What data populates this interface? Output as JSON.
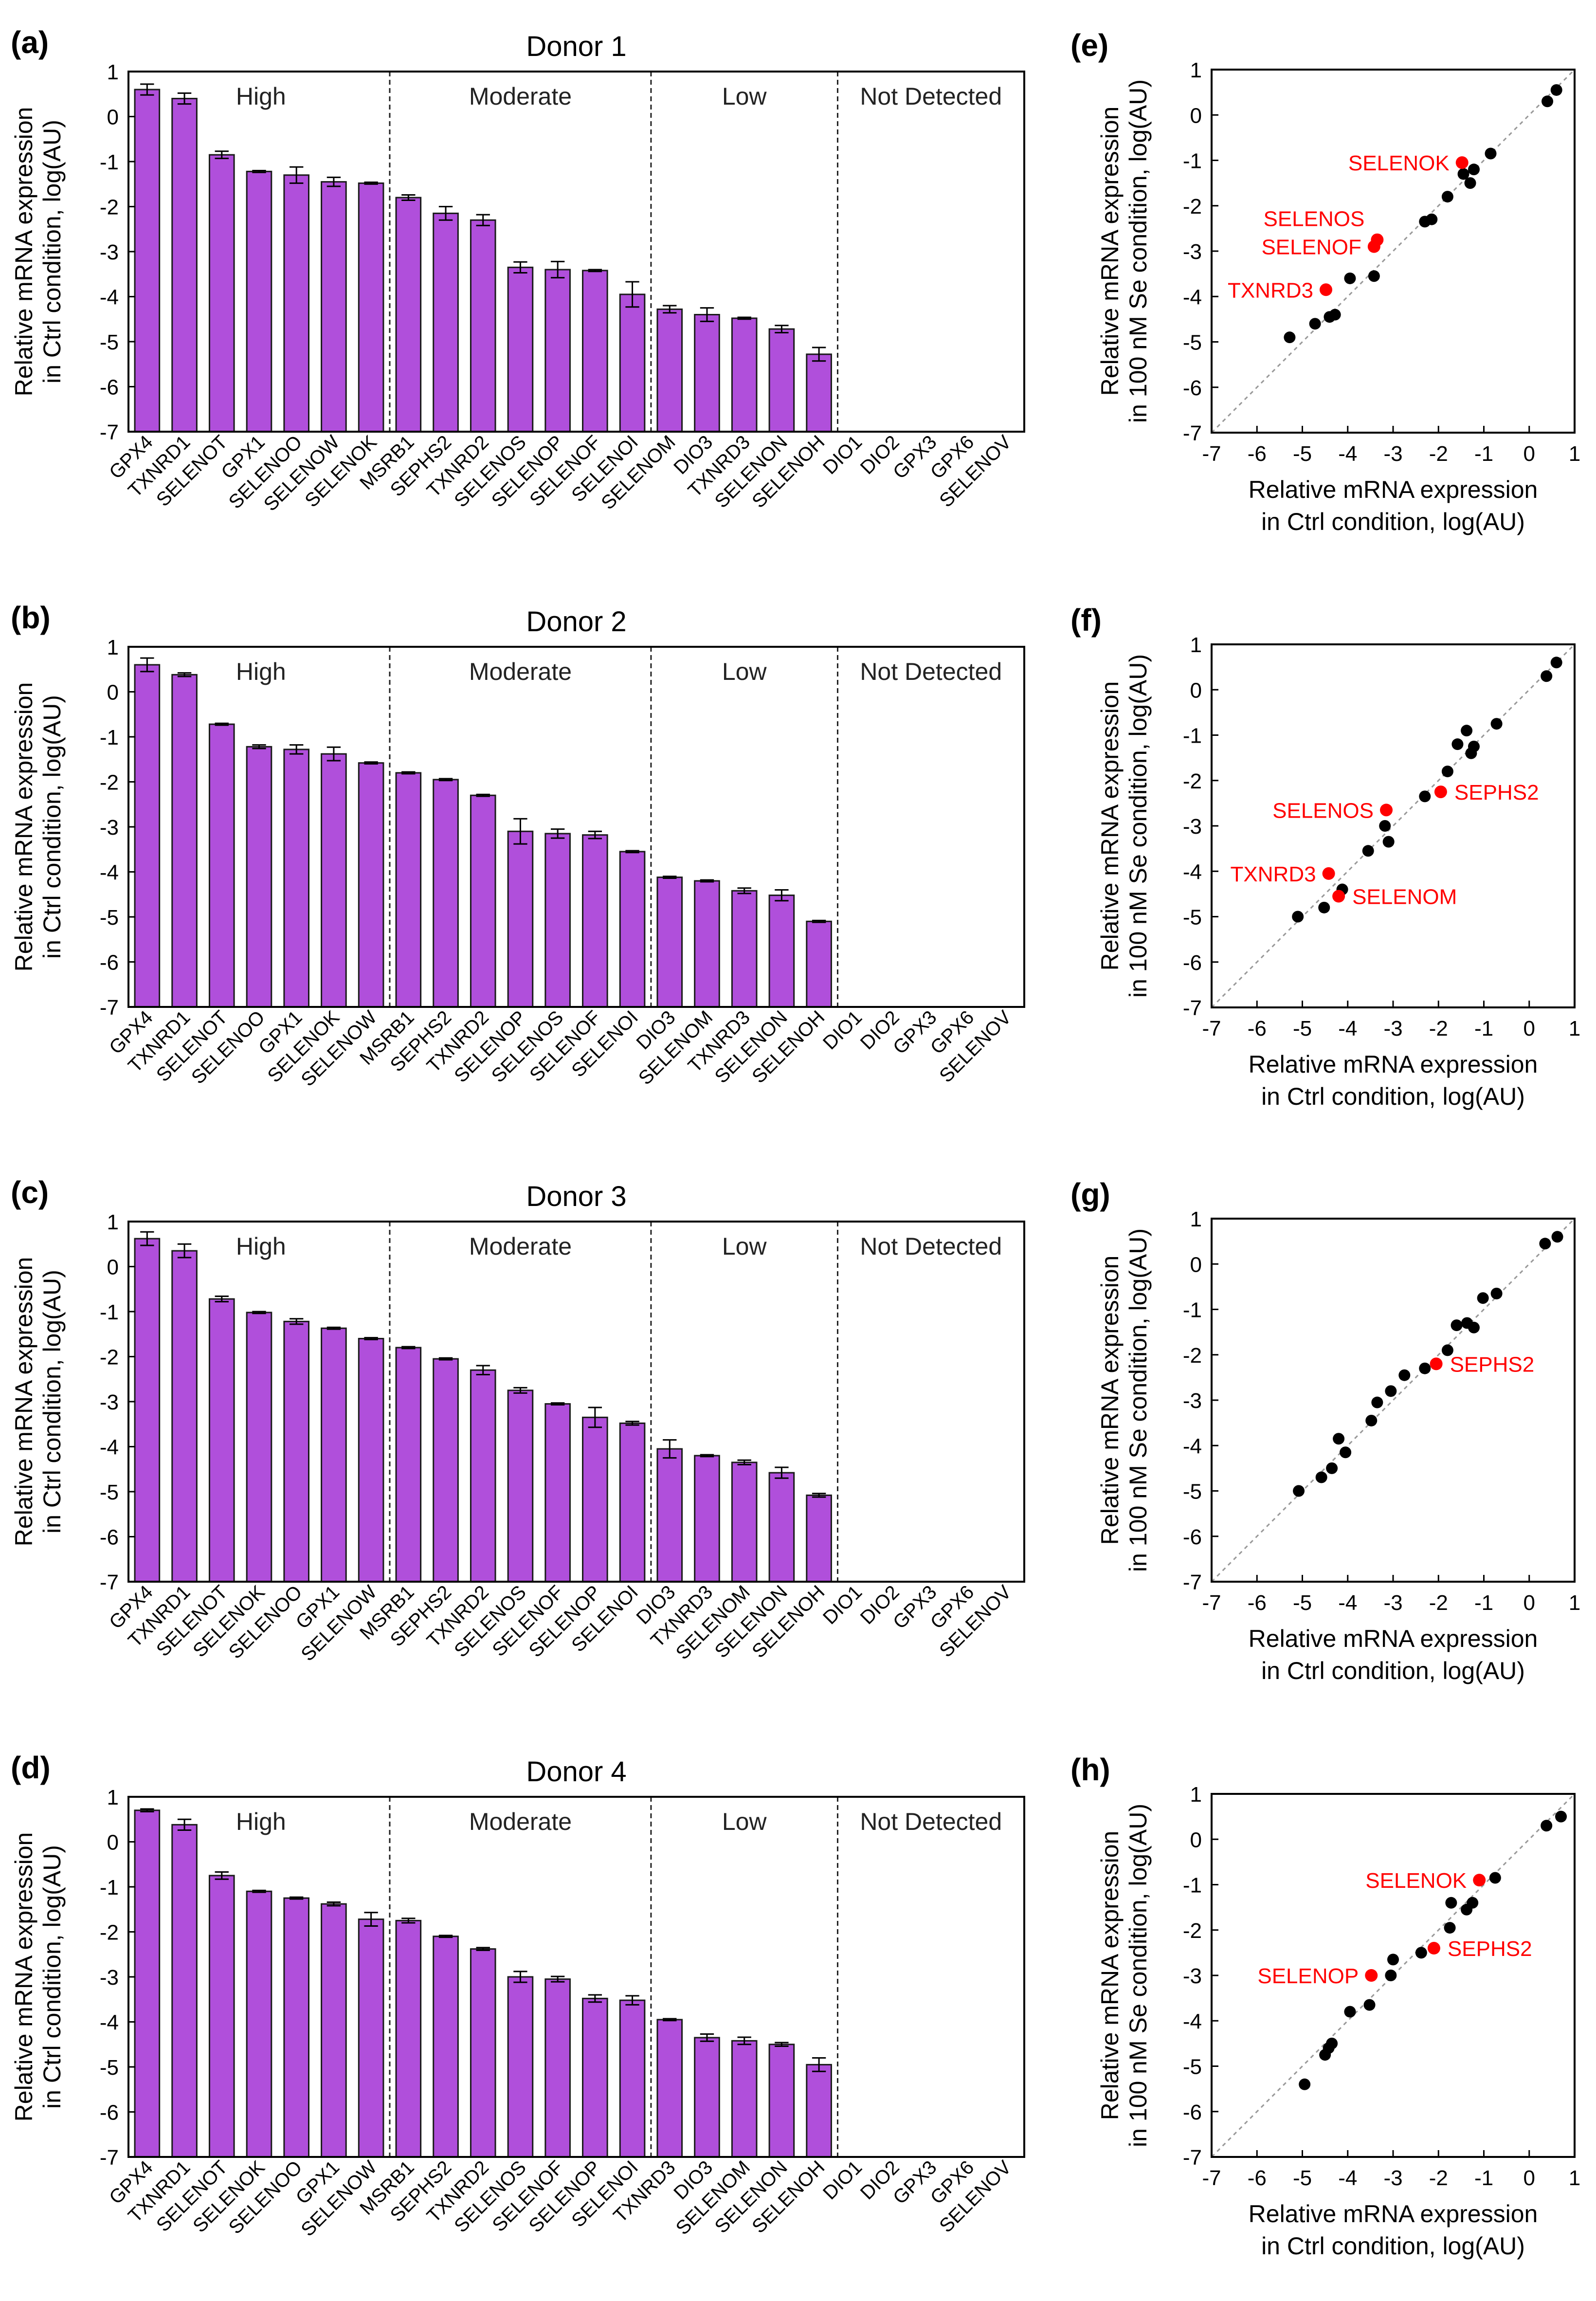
{
  "bar_colors": {
    "fill": "#B04FDB",
    "stroke": "#1a1a1a"
  },
  "highlight_color": "#FF0000",
  "point_color": "#000000",
  "chart_data": [
    {
      "panel": "(a)",
      "type": "bar",
      "title": "Donor 1",
      "ylabel_lines": [
        "Relative mRNA expression",
        "in Ctrl condition, log(AU)"
      ],
      "ylim": [
        -7,
        1
      ],
      "yticks": [
        1,
        0,
        -1,
        -2,
        -3,
        -4,
        -5,
        -6,
        -7
      ],
      "group_labels": [
        "High",
        "Moderate",
        "Low",
        "Not Detected"
      ],
      "group_sizes": [
        7,
        7,
        5,
        5
      ],
      "categories": [
        "GPX4",
        "TXNRD1",
        "SELENOT",
        "GPX1",
        "SELENOO",
        "SELENOW",
        "SELENOK",
        "MSRB1",
        "SEPHS2",
        "TXNRD2",
        "SELENOS",
        "SELENOP",
        "SELENOF",
        "SELENOI",
        "SELENOM",
        "DIO3",
        "TXNRD3",
        "SELENON",
        "SELENOH",
        "DIO1",
        "DIO2",
        "GPX3",
        "GPX6",
        "SELENOV"
      ],
      "values": [
        0.6,
        0.4,
        -0.85,
        -1.22,
        -1.3,
        -1.45,
        -1.48,
        -1.8,
        -2.15,
        -2.3,
        -3.35,
        -3.4,
        -3.42,
        -3.95,
        -4.28,
        -4.4,
        -4.48,
        -4.72,
        -5.28,
        null,
        null,
        null,
        null,
        null
      ],
      "errors": [
        0.12,
        0.12,
        0.08,
        0.02,
        0.18,
        0.1,
        0.02,
        0.06,
        0.15,
        0.12,
        0.12,
        0.18,
        0.02,
        0.28,
        0.08,
        0.15,
        0.02,
        0.08,
        0.15,
        null,
        null,
        null,
        null,
        null
      ]
    },
    {
      "panel": "(b)",
      "type": "bar",
      "title": "Donor 2",
      "ylabel_lines": [
        "Relative mRNA expression",
        "in Ctrl condition, log(AU)"
      ],
      "ylim": [
        -7,
        1
      ],
      "yticks": [
        1,
        0,
        -1,
        -2,
        -3,
        -4,
        -5,
        -6,
        -7
      ],
      "group_labels": [
        "High",
        "Moderate",
        "Low",
        "Not Detected"
      ],
      "group_sizes": [
        7,
        7,
        5,
        5
      ],
      "categories": [
        "GPX4",
        "TXNRD1",
        "SELENOT",
        "SELENOO",
        "GPX1",
        "SELENOK",
        "SELENOW",
        "MSRB1",
        "SEPHS2",
        "TXNRD2",
        "SELENOP",
        "SELENOS",
        "SELENOF",
        "SELENOI",
        "DIO3",
        "SELENOM",
        "TXNRD3",
        "SELENON",
        "SELENOH",
        "DIO1",
        "DIO2",
        "GPX3",
        "GPX6",
        "SELENOV"
      ],
      "values": [
        0.6,
        0.38,
        -0.72,
        -1.22,
        -1.28,
        -1.38,
        -1.58,
        -1.8,
        -1.95,
        -2.3,
        -3.1,
        -3.15,
        -3.18,
        -3.55,
        -4.12,
        -4.2,
        -4.42,
        -4.52,
        -5.1,
        null,
        null,
        null,
        null,
        null
      ],
      "errors": [
        0.15,
        0.04,
        0.02,
        0.04,
        0.1,
        0.15,
        0.02,
        0.02,
        0.02,
        0.02,
        0.28,
        0.1,
        0.08,
        0.02,
        0.02,
        0.02,
        0.06,
        0.12,
        0.02,
        null,
        null,
        null,
        null,
        null
      ]
    },
    {
      "panel": "(c)",
      "type": "bar",
      "title": "Donor 3",
      "ylabel_lines": [
        "Relative mRNA expression",
        "in Ctrl condition, log(AU)"
      ],
      "ylim": [
        -7,
        1
      ],
      "yticks": [
        1,
        0,
        -1,
        -2,
        -3,
        -4,
        -5,
        -6,
        -7
      ],
      "group_labels": [
        "High",
        "Moderate",
        "Low",
        "Not Detected"
      ],
      "group_sizes": [
        7,
        7,
        5,
        5
      ],
      "categories": [
        "GPX4",
        "TXNRD1",
        "SELENOT",
        "SELENOK",
        "SELENOO",
        "GPX1",
        "SELENOW",
        "MSRB1",
        "SEPHS2",
        "TXNRD2",
        "SELENOS",
        "SELENOF",
        "SELENOP",
        "SELENOI",
        "DIO3",
        "TXNRD3",
        "SELENOM",
        "SELENON",
        "SELENOH",
        "DIO1",
        "DIO2",
        "GPX3",
        "GPX6",
        "SELENOV"
      ],
      "values": [
        0.62,
        0.35,
        -0.72,
        -1.02,
        -1.22,
        -1.37,
        -1.6,
        -1.8,
        -2.05,
        -2.3,
        -2.75,
        -3.05,
        -3.35,
        -3.48,
        -4.05,
        -4.2,
        -4.35,
        -4.58,
        -5.08,
        null,
        null,
        null,
        null,
        null
      ],
      "errors": [
        0.15,
        0.15,
        0.06,
        0.02,
        0.06,
        0.02,
        0.02,
        0.02,
        0.02,
        0.1,
        0.06,
        0.02,
        0.22,
        0.04,
        0.2,
        0.02,
        0.05,
        0.12,
        0.04,
        null,
        null,
        null,
        null,
        null
      ]
    },
    {
      "panel": "(d)",
      "type": "bar",
      "title": "Donor 4",
      "ylabel_lines": [
        "Relative mRNA expression",
        "in Ctrl condition, log(AU)"
      ],
      "ylim": [
        -7,
        1
      ],
      "yticks": [
        1,
        0,
        -1,
        -2,
        -3,
        -4,
        -5,
        -6,
        -7
      ],
      "group_labels": [
        "High",
        "Moderate",
        "Low",
        "Not Detected"
      ],
      "group_sizes": [
        7,
        7,
        5,
        5
      ],
      "categories": [
        "GPX4",
        "TXNRD1",
        "SELENOT",
        "SELENOK",
        "SELENOO",
        "GPX1",
        "SELENOW",
        "MSRB1",
        "SEPHS2",
        "TXNRD2",
        "SELENOS",
        "SELENOF",
        "SELENOP",
        "SELENOI",
        "TXNRD3",
        "DIO3",
        "SELENOM",
        "SELENON",
        "SELENOH",
        "DIO1",
        "DIO2",
        "GPX3",
        "GPX6",
        "SELENOV"
      ],
      "values": [
        0.7,
        0.38,
        -0.75,
        -1.1,
        -1.25,
        -1.38,
        -1.72,
        -1.75,
        -2.1,
        -2.38,
        -3.0,
        -3.05,
        -3.48,
        -3.52,
        -3.95,
        -4.35,
        -4.42,
        -4.5,
        -4.95,
        null,
        null,
        null,
        null,
        null
      ],
      "errors": [
        0.03,
        0.12,
        0.08,
        0.02,
        0.02,
        0.04,
        0.15,
        0.05,
        0.02,
        0.03,
        0.12,
        0.06,
        0.08,
        0.1,
        0.02,
        0.08,
        0.08,
        0.04,
        0.15,
        null,
        null,
        null,
        null,
        null
      ]
    },
    {
      "panel": "(e)",
      "type": "scatter",
      "xlabel_lines": [
        "Relative mRNA expression",
        "in Ctrl condition, log(AU)"
      ],
      "ylabel_lines": [
        "Relative mRNA expression",
        "in 100 nM Se condition, log(AU)"
      ],
      "xlim": [
        -7,
        1
      ],
      "ylim": [
        -7,
        1
      ],
      "ticks": [
        -7,
        -6,
        -5,
        -4,
        -3,
        -2,
        -1,
        0,
        1
      ],
      "points": [
        {
          "x": 0.6,
          "y": 0.55
        },
        {
          "x": 0.4,
          "y": 0.3
        },
        {
          "x": -0.85,
          "y": -0.85
        },
        {
          "x": -1.22,
          "y": -1.2
        },
        {
          "x": -1.3,
          "y": -1.5
        },
        {
          "x": -1.45,
          "y": -1.3
        },
        {
          "x": -1.8,
          "y": -1.8
        },
        {
          "x": -2.15,
          "y": -2.3
        },
        {
          "x": -2.3,
          "y": -2.35
        },
        {
          "x": -3.42,
          "y": -3.55
        },
        {
          "x": -3.95,
          "y": -3.6
        },
        {
          "x": -4.28,
          "y": -4.4
        },
        {
          "x": -4.4,
          "y": -4.45
        },
        {
          "x": -4.72,
          "y": -4.6
        },
        {
          "x": -5.28,
          "y": -4.9
        }
      ],
      "highlights": [
        {
          "label": "SELENOK",
          "x": -1.48,
          "y": -1.05
        },
        {
          "label": "SELENOS",
          "x": -3.35,
          "y": -2.75
        },
        {
          "label": "SELENOF",
          "x": -3.42,
          "y": -2.9
        },
        {
          "label": "TXNRD3",
          "x": -4.48,
          "y": -3.85
        }
      ]
    },
    {
      "panel": "(f)",
      "type": "scatter",
      "xlabel_lines": [
        "Relative mRNA expression",
        "in Ctrl condition, log(AU)"
      ],
      "ylabel_lines": [
        "Relative mRNA expression",
        "in 100 nM Se condition, log(AU)"
      ],
      "xlim": [
        -7,
        1
      ],
      "ylim": [
        -7,
        1
      ],
      "ticks": [
        -7,
        -6,
        -5,
        -4,
        -3,
        -2,
        -1,
        0,
        1
      ],
      "points": [
        {
          "x": 0.6,
          "y": 0.6
        },
        {
          "x": 0.38,
          "y": 0.3
        },
        {
          "x": -0.72,
          "y": -0.75
        },
        {
          "x": -1.22,
          "y": -1.25
        },
        {
          "x": -1.28,
          "y": -1.4
        },
        {
          "x": -1.38,
          "y": -0.9
        },
        {
          "x": -1.58,
          "y": -1.2
        },
        {
          "x": -1.8,
          "y": -1.8
        },
        {
          "x": -2.3,
          "y": -2.35
        },
        {
          "x": -3.18,
          "y": -3.0
        },
        {
          "x": -3.1,
          "y": -3.35
        },
        {
          "x": -3.55,
          "y": -3.55
        },
        {
          "x": -4.12,
          "y": -4.4
        },
        {
          "x": -4.52,
          "y": -4.8
        },
        {
          "x": -5.1,
          "y": -5.0
        }
      ],
      "highlights": [
        {
          "label": "SELENOS",
          "x": -3.15,
          "y": -2.65
        },
        {
          "label": "SEPHS2",
          "x": -1.95,
          "y": -2.25
        },
        {
          "label": "TXNRD3",
          "x": -4.42,
          "y": -4.05
        },
        {
          "label": "SELENOM",
          "x": -4.2,
          "y": -4.55
        }
      ]
    },
    {
      "panel": "(g)",
      "type": "scatter",
      "xlabel_lines": [
        "Relative mRNA expression",
        "in Ctrl condition, log(AU)"
      ],
      "ylabel_lines": [
        "Relative mRNA expression",
        "in 100 nM Se condition, log(AU)"
      ],
      "xlim": [
        -7,
        1
      ],
      "ylim": [
        -7,
        1
      ],
      "ticks": [
        -7,
        -6,
        -5,
        -4,
        -3,
        -2,
        -1,
        0,
        1
      ],
      "points": [
        {
          "x": 0.62,
          "y": 0.6
        },
        {
          "x": 0.35,
          "y": 0.45
        },
        {
          "x": -0.72,
          "y": -0.65
        },
        {
          "x": -1.02,
          "y": -0.75
        },
        {
          "x": -1.22,
          "y": -1.4
        },
        {
          "x": -1.37,
          "y": -1.3
        },
        {
          "x": -1.6,
          "y": -1.35
        },
        {
          "x": -1.8,
          "y": -1.9
        },
        {
          "x": -2.3,
          "y": -2.3
        },
        {
          "x": -2.75,
          "y": -2.45
        },
        {
          "x": -3.05,
          "y": -2.8
        },
        {
          "x": -3.35,
          "y": -3.05
        },
        {
          "x": -3.48,
          "y": -3.45
        },
        {
          "x": -4.05,
          "y": -4.15
        },
        {
          "x": -4.2,
          "y": -3.85
        },
        {
          "x": -4.35,
          "y": -4.5
        },
        {
          "x": -4.58,
          "y": -4.7
        },
        {
          "x": -5.08,
          "y": -5.0
        }
      ],
      "highlights": [
        {
          "label": "SEPHS2",
          "x": -2.05,
          "y": -2.2
        }
      ]
    },
    {
      "panel": "(h)",
      "type": "scatter",
      "xlabel_lines": [
        "Relative mRNA expression",
        "in Ctrl condition, log(AU)"
      ],
      "ylabel_lines": [
        "Relative mRNA expression",
        "in 100 nM Se condition, log(AU)"
      ],
      "xlim": [
        -7,
        1
      ],
      "ylim": [
        -7,
        1
      ],
      "ticks": [
        -7,
        -6,
        -5,
        -4,
        -3,
        -2,
        -1,
        0,
        1
      ],
      "points": [
        {
          "x": 0.7,
          "y": 0.5
        },
        {
          "x": 0.38,
          "y": 0.3
        },
        {
          "x": -0.75,
          "y": -0.85
        },
        {
          "x": -1.25,
          "y": -1.4
        },
        {
          "x": -1.38,
          "y": -1.55
        },
        {
          "x": -1.72,
          "y": -1.4
        },
        {
          "x": -1.75,
          "y": -1.95
        },
        {
          "x": -2.38,
          "y": -2.5
        },
        {
          "x": -3.0,
          "y": -2.65
        },
        {
          "x": -3.05,
          "y": -3.0
        },
        {
          "x": -3.52,
          "y": -3.65
        },
        {
          "x": -3.95,
          "y": -3.8
        },
        {
          "x": -4.35,
          "y": -4.5
        },
        {
          "x": -4.42,
          "y": -4.6
        },
        {
          "x": -4.5,
          "y": -4.75
        },
        {
          "x": -4.95,
          "y": -5.4
        }
      ],
      "highlights": [
        {
          "label": "SELENOK",
          "x": -1.1,
          "y": -0.9
        },
        {
          "label": "SEPHS2",
          "x": -2.1,
          "y": -2.4
        },
        {
          "label": "SELENOP",
          "x": -3.48,
          "y": -3.0
        }
      ]
    }
  ]
}
